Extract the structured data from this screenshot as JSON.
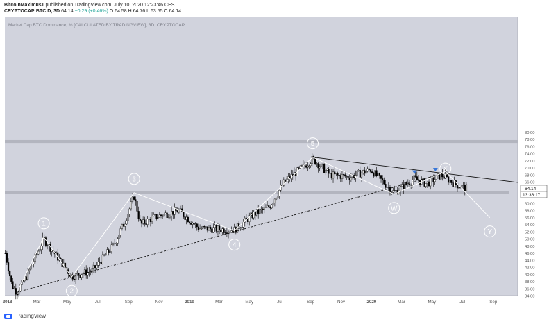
{
  "header": {
    "author_line_user": "BitcoinMaximus1",
    "author_line_rest": " published on TradingView.com, July 10, 2020 12:23:46 CEST",
    "symbol": "CRYPTOCAP:BTC.D, 3D",
    "last": "64.14",
    "change": "+0.29 (+0.46%)",
    "o_label": "O:",
    "o": "64.58",
    "h_label": "H:",
    "h": "64.76",
    "l_label": "L:",
    "l": "63.55",
    "c_label": "C:",
    "c": "64.14"
  },
  "footer": {
    "brand": "TradingView"
  },
  "chart_data": {
    "type": "candlestick",
    "title": "Market Cap BTC Dominance, % [CALCULATED BY TRADINGVIEW], 3D, CRYPTOCAP",
    "ylim": [
      32,
      81
    ],
    "y_ticks": [
      "80.00",
      "78.00",
      "76.00",
      "74.00",
      "72.00",
      "70.00",
      "68.00",
      "66.00",
      "64.00",
      "62.00",
      "60.00",
      "58.00",
      "56.00",
      "54.00",
      "52.00",
      "50.00",
      "48.00",
      "46.00",
      "44.00",
      "42.00",
      "40.00",
      "38.00",
      "36.00",
      "34.00"
    ],
    "x_ticks": [
      "2018",
      "Mar",
      "May",
      "Jul",
      "Sep",
      "Nov",
      "2019",
      "Mar",
      "May",
      "Jul",
      "Sep",
      "Nov",
      "2020",
      "Mar",
      "May",
      "Jul",
      "Sep"
    ],
    "last_price_label": "64.14",
    "countdown_label": "13:36:17",
    "waves": [
      {
        "label": "1",
        "date": "2018-03-15",
        "y": 50.5
      },
      {
        "label": "2",
        "date": "2018-05-10",
        "y": 39.3
      },
      {
        "label": "3",
        "date": "2018-09-12",
        "y": 63.0
      },
      {
        "label": "4",
        "date": "2019-04-01",
        "y": 52.3
      },
      {
        "label": "5",
        "date": "2019-09-05",
        "y": 73.0
      },
      {
        "label": "W",
        "date": "2020-02-15",
        "y": 62.6
      },
      {
        "label": "X",
        "date": "2020-05-28",
        "y": 69.0
      },
      {
        "label": "Y",
        "date": "2020-08-25",
        "y": 56.0
      }
    ],
    "support_zone": [
      62.6,
      63.4
    ],
    "resistance_zone": [
      77.0,
      77.8
    ],
    "trendlines": [
      {
        "from": {
          "date": "2018-01-20",
          "y": 35.0
        },
        "to": {
          "date": "2020-05-28",
          "y": 68.6
        },
        "style": "dashed"
      },
      {
        "from": {
          "date": "2019-09-05",
          "y": 73.0
        },
        "to": {
          "date": "2020-10-20",
          "y": 65.9
        },
        "style": "solid"
      }
    ],
    "markers": [
      {
        "date": "2020-03-27",
        "y": 68.5
      },
      {
        "date": "2020-05-08",
        "y": 69.2
      }
    ],
    "colors": {
      "background": "#d1d3dd",
      "candles": "#000000",
      "wave_lines": "#ffffff",
      "zones": "#b3b5bf",
      "marker": "#3a78d8"
    }
  }
}
